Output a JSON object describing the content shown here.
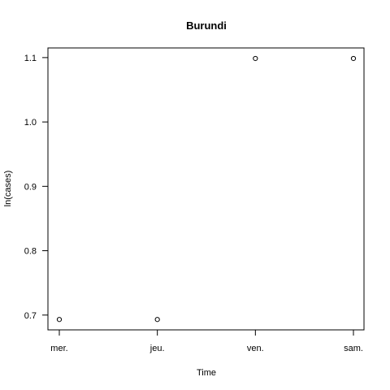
{
  "chart_data": {
    "type": "scatter",
    "title": "Burundi",
    "xlabel": "Time",
    "ylabel": "ln(cases)",
    "x_categories": [
      "mer.",
      "jeu.",
      "ven.",
      "sam."
    ],
    "points": [
      {
        "x": "mer.",
        "y": 0.6931
      },
      {
        "x": "jeu.",
        "y": 0.6931
      },
      {
        "x": "ven.",
        "y": 1.0986
      },
      {
        "x": "sam.",
        "y": 1.0986
      }
    ],
    "y_ticks": [
      0.7,
      0.8,
      0.9,
      1.0,
      1.1
    ],
    "y_tick_labels": [
      "0.7",
      "0.8",
      "0.9",
      "1.0",
      "1.1"
    ],
    "ylim": [
      0.677,
      1.115
    ],
    "grid": false,
    "marker": "open-circle"
  }
}
